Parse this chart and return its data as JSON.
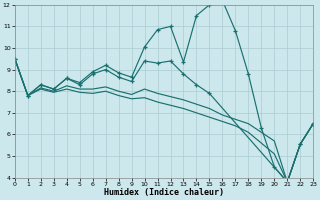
{
  "xlabel": "Humidex (Indice chaleur)",
  "background_color": "#cce8ec",
  "grid_color": "#aaccd2",
  "line_color": "#1a7070",
  "xlim": [
    0,
    23
  ],
  "ylim": [
    4,
    12
  ],
  "yticks": [
    4,
    5,
    6,
    7,
    8,
    9,
    10,
    11,
    12
  ],
  "xticks": [
    0,
    1,
    2,
    3,
    4,
    5,
    6,
    7,
    8,
    9,
    10,
    11,
    12,
    13,
    14,
    15,
    16,
    17,
    18,
    19,
    20,
    21,
    22,
    23
  ],
  "line1_x": [
    0,
    1,
    2,
    3,
    4,
    5,
    6,
    7,
    8,
    9,
    10,
    11,
    12,
    13,
    14,
    15,
    16,
    17,
    18,
    19,
    20,
    21,
    22,
    23
  ],
  "line1_y": [
    9.5,
    7.8,
    8.3,
    8.1,
    8.6,
    8.4,
    8.9,
    9.2,
    8.85,
    8.65,
    10.05,
    10.85,
    11.0,
    9.35,
    11.5,
    12.0,
    12.2,
    10.8,
    8.8,
    6.3,
    4.5,
    3.8,
    5.55,
    6.5
  ],
  "line2_x": [
    0,
    1,
    2,
    3,
    4,
    5,
    6,
    7,
    8,
    9,
    10,
    11,
    12,
    13,
    14,
    15,
    21,
    22,
    23
  ],
  "line2_y": [
    9.5,
    7.8,
    8.3,
    8.1,
    8.6,
    8.3,
    8.8,
    9.0,
    8.65,
    8.45,
    9.4,
    9.3,
    9.4,
    8.8,
    8.3,
    7.9,
    3.8,
    5.55,
    6.5
  ],
  "line3_x": [
    0,
    1,
    2,
    3,
    4,
    5,
    6,
    7,
    8,
    9,
    10,
    11,
    12,
    13,
    14,
    15,
    16,
    17,
    18,
    19,
    20,
    21,
    22,
    23
  ],
  "line3_y": [
    9.5,
    7.8,
    8.15,
    8.0,
    8.25,
    8.1,
    8.1,
    8.2,
    8.0,
    7.85,
    8.1,
    7.9,
    7.75,
    7.6,
    7.4,
    7.2,
    6.9,
    6.7,
    6.5,
    6.1,
    5.7,
    3.8,
    5.55,
    6.5
  ],
  "line4_x": [
    0,
    1,
    2,
    3,
    4,
    5,
    6,
    7,
    8,
    9,
    10,
    11,
    12,
    13,
    14,
    15,
    16,
    17,
    18,
    19,
    20,
    21,
    22,
    23
  ],
  "line4_y": [
    9.5,
    7.8,
    8.1,
    7.95,
    8.1,
    7.95,
    7.9,
    8.0,
    7.8,
    7.65,
    7.7,
    7.5,
    7.35,
    7.2,
    7.0,
    6.8,
    6.6,
    6.4,
    6.1,
    5.6,
    5.1,
    3.8,
    5.55,
    6.5
  ]
}
